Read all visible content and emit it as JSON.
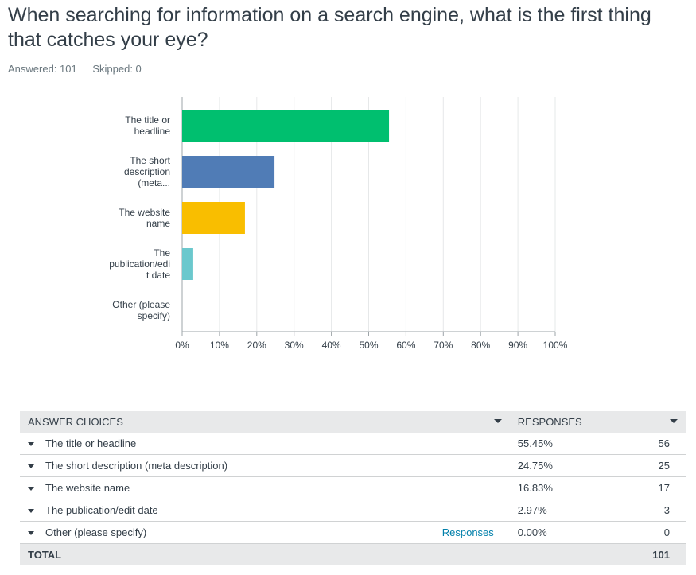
{
  "question": "When searching for information on a search engine, what is the first thing that catches your eye?",
  "answered_label": "Answered: 101",
  "skipped_label": "Skipped: 0",
  "chart_data": {
    "type": "bar",
    "orientation": "horizontal",
    "categories": [
      [
        "The title or",
        "headline"
      ],
      [
        "The short",
        "description",
        "(meta..."
      ],
      [
        "The website",
        "name"
      ],
      [
        "The",
        "publication/edi",
        "t date"
      ],
      [
        "Other (please",
        "specify)"
      ]
    ],
    "values": [
      55.45,
      24.75,
      16.83,
      2.97,
      0.0
    ],
    "colors": [
      "#00bf6f",
      "#507cb6",
      "#f9be00",
      "#6bc8cd",
      "#ff8b4f"
    ],
    "xlim": [
      0,
      100
    ],
    "ticks": [
      "0%",
      "10%",
      "20%",
      "30%",
      "40%",
      "50%",
      "60%",
      "70%",
      "80%",
      "90%",
      "100%"
    ],
    "grid": true
  },
  "table": {
    "header_choices": "ANSWER CHOICES",
    "header_responses": "RESPONSES",
    "rows": [
      {
        "choice": "The title or headline",
        "pct": "55.45%",
        "count": "56"
      },
      {
        "choice": "The short description (meta description)",
        "pct": "24.75%",
        "count": "25"
      },
      {
        "choice": "The website name",
        "pct": "16.83%",
        "count": "17"
      },
      {
        "choice": "The publication/edit date",
        "pct": "2.97%",
        "count": "3"
      },
      {
        "choice": "Other (please specify)",
        "pct": "0.00%",
        "count": "0",
        "link": "Responses"
      }
    ],
    "total_label": "TOTAL",
    "total_count": "101"
  }
}
